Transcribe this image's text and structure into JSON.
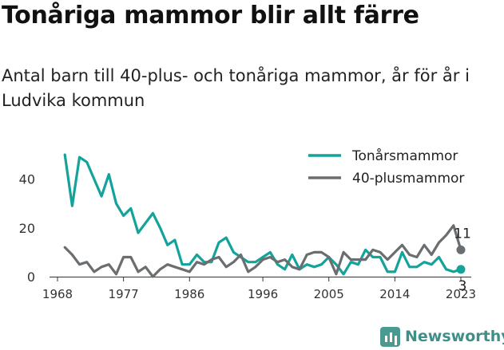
{
  "title": "Tonåriga mammor blir allt färre",
  "subtitle": "Antal barn till 40-plus- och tonåriga mammor, år för år i Ludvika kommun",
  "brand": {
    "name": "Newsworthy",
    "icon": "newsworthy-logo-icon",
    "color": "#4a9a92"
  },
  "chart_data": {
    "type": "line",
    "x": [
      1969,
      1970,
      1971,
      1972,
      1973,
      1974,
      1975,
      1976,
      1977,
      1978,
      1979,
      1980,
      1981,
      1982,
      1983,
      1984,
      1985,
      1986,
      1987,
      1988,
      1989,
      1990,
      1991,
      1992,
      1993,
      1994,
      1995,
      1996,
      1997,
      1998,
      1999,
      2000,
      2001,
      2002,
      2003,
      2004,
      2005,
      2006,
      2007,
      2008,
      2009,
      2010,
      2011,
      2012,
      2013,
      2014,
      2015,
      2016,
      2017,
      2018,
      2019,
      2020,
      2021,
      2022,
      2023
    ],
    "series": [
      {
        "name": "Tonårsmammor",
        "color": "#14a39a",
        "values": [
          50,
          29,
          49,
          47,
          40,
          33,
          42,
          30,
          25,
          28,
          18,
          22,
          26,
          20,
          13,
          15,
          5,
          5,
          9,
          6,
          6,
          14,
          16,
          10,
          8,
          6,
          6,
          8,
          10,
          5,
          3,
          9,
          3,
          5,
          4,
          5,
          8,
          5,
          1,
          6,
          5,
          11,
          8,
          8,
          2,
          2,
          10,
          4,
          4,
          6,
          5,
          8,
          3,
          2,
          3
        ]
      },
      {
        "name": "40-plusmammor",
        "color": "#6b6e70",
        "values": [
          12,
          9,
          5,
          6,
          2,
          4,
          5,
          1,
          8,
          8,
          2,
          4,
          0,
          3,
          5,
          4,
          3,
          2,
          6,
          5,
          7,
          8,
          4,
          6,
          9,
          2,
          4,
          7,
          8,
          6,
          7,
          4,
          3,
          9,
          10,
          10,
          8,
          1,
          10,
          7,
          7,
          7,
          11,
          10,
          7,
          10,
          13,
          9,
          8,
          13,
          9,
          14,
          17,
          21,
          11
        ]
      }
    ],
    "end_labels": {
      "Tonårsmammor": "3",
      "40-plusmammor": "11"
    },
    "xticks": [
      "1968",
      "1977",
      "1986",
      "1996",
      "2005",
      "2014",
      "2023"
    ],
    "yticks": [
      0,
      20,
      40
    ],
    "ylim": [
      0,
      52
    ],
    "xlim": [
      1968,
      2023
    ],
    "grid": false,
    "legend_position": "top-right"
  }
}
